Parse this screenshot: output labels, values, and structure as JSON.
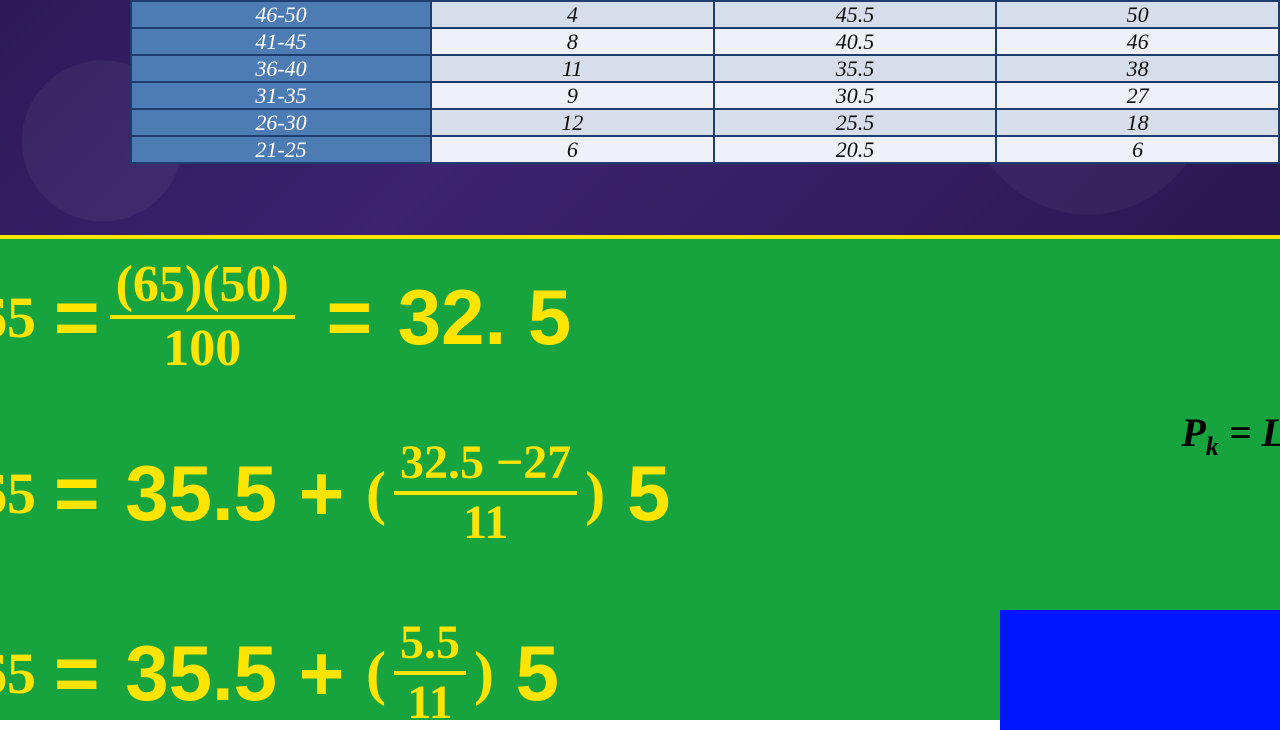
{
  "table": {
    "rows": [
      {
        "interval": "46-50",
        "f": "4",
        "lb": "45.5",
        "cf": "50"
      },
      {
        "interval": "41-45",
        "f": "8",
        "lb": "40.5",
        "cf": "46"
      },
      {
        "interval": "36-40",
        "f": "11",
        "lb": "35.5",
        "cf": "38"
      },
      {
        "interval": "31-35",
        "f": "9",
        "lb": "30.5",
        "cf": "27"
      },
      {
        "interval": "26-30",
        "f": "12",
        "lb": "25.5",
        "cf": "18"
      },
      {
        "interval": "21-25",
        "f": "6",
        "lb": "20.5",
        "cf": "6"
      }
    ],
    "header_bg": "#4d7bb3",
    "cell_bg_a": "#d6deeb",
    "cell_bg_b": "#eef2f8",
    "border_color": "#1f3c6e"
  },
  "formulas": {
    "sub_label": "65",
    "line1": {
      "numer": "(65)(50)",
      "denom": "100",
      "result": "32. 5"
    },
    "line2": {
      "lb": "35.5",
      "numer": "32.5 −27",
      "denom": "11",
      "width": "5"
    },
    "line3": {
      "lb": "35.5",
      "numer": "5.5",
      "denom": "11",
      "width": "5"
    },
    "side": {
      "lhs_var": "P",
      "lhs_sub": "k",
      "rhs_start": "= L"
    }
  },
  "colors": {
    "green_bg": "#17a33d",
    "yellow": "#ffe400",
    "blue_box": "#0016ff",
    "purple_bg": "#3d2370"
  }
}
